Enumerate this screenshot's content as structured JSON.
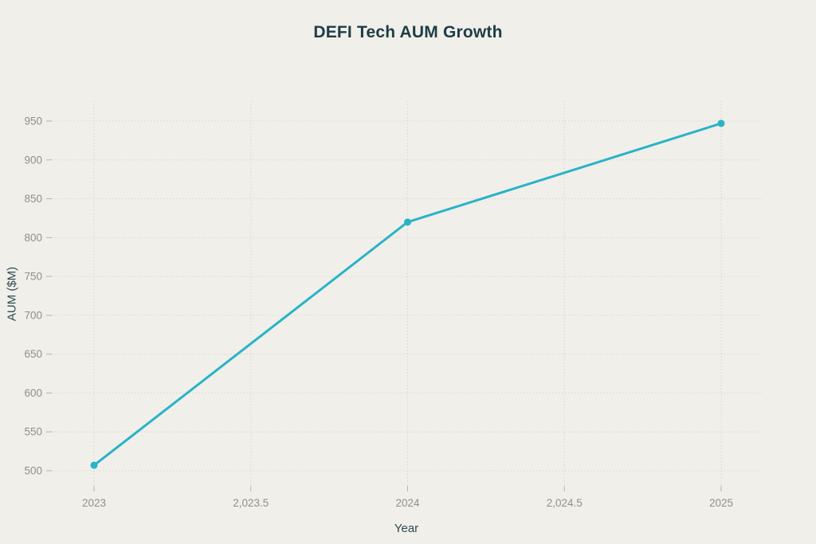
{
  "page": {
    "background_color": "#f0efe9"
  },
  "chart_data": {
    "type": "line",
    "title": "DEFI Tech AUM Growth",
    "xlabel": "Year",
    "ylabel": "AUM ($M)",
    "x": [
      2023,
      2024,
      2025
    ],
    "series": [
      {
        "name": "AUM ($M)",
        "values": [
          507,
          820,
          947
        ],
        "color": "#29b3c8"
      }
    ],
    "x_ticks": [
      {
        "value": 2023,
        "label": "2023"
      },
      {
        "value": 2023.5,
        "label": "2,023.5"
      },
      {
        "value": 2024,
        "label": "2024"
      },
      {
        "value": 2024.5,
        "label": "2,024.5"
      },
      {
        "value": 2025,
        "label": "2025"
      }
    ],
    "y_ticks": [
      {
        "value": 500,
        "label": "500"
      },
      {
        "value": 550,
        "label": "550"
      },
      {
        "value": 600,
        "label": "600"
      },
      {
        "value": 650,
        "label": "650"
      },
      {
        "value": 700,
        "label": "700"
      },
      {
        "value": 750,
        "label": "750"
      },
      {
        "value": 800,
        "label": "800"
      },
      {
        "value": 850,
        "label": "850"
      },
      {
        "value": 900,
        "label": "900"
      },
      {
        "value": 950,
        "label": "950"
      }
    ],
    "xlim": [
      2023,
      2025
    ],
    "ylim": [
      500,
      950
    ],
    "grid": true,
    "legend": "none",
    "colors": {
      "background": "#f0efe9",
      "title": "#1d3d47",
      "axis_label": "#2c4a53",
      "tick_label": "#8f908c",
      "grid_line": "#d8d6cd",
      "tick_mark": "#b5b4ae",
      "line": "#29b3c8"
    }
  }
}
